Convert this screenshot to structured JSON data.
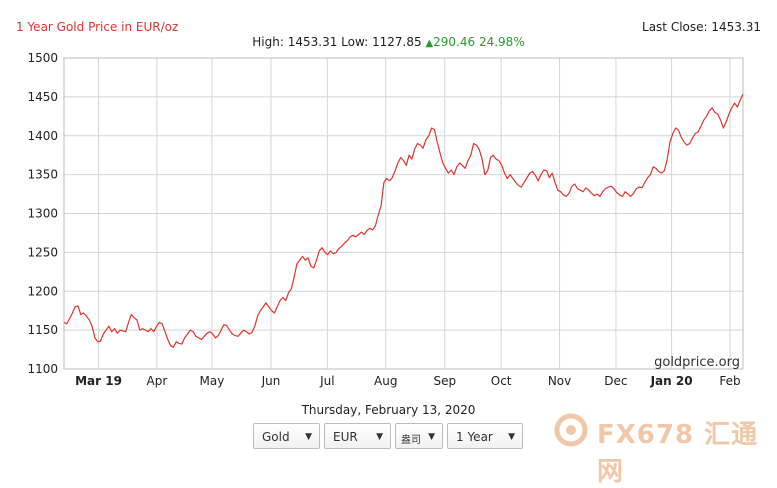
{
  "header": {
    "title": "1 Year Gold Price in EUR/oz",
    "last_close_label": "Last Close: 1453.31"
  },
  "stats": {
    "high_low": "High: 1453.31 Low: 1127.85",
    "change": "290.46 24.98%"
  },
  "footer": {
    "date": "Thursday, February 13, 2020",
    "credit": "goldprice.org"
  },
  "controls": {
    "metal": "Gold",
    "currency": "EUR",
    "unit": "盎司",
    "period": "1 Year"
  },
  "watermark": {
    "text": "FX678 汇通网"
  },
  "colors": {
    "line": "#e0342f",
    "title": "#e0342f",
    "up": "#2a9a2a",
    "grid": "#d4d4d4"
  },
  "chart_data": {
    "type": "line",
    "title": "1 Year Gold Price in EUR/oz",
    "xlabel": "",
    "ylabel": "",
    "ylim": [
      1100,
      1500
    ],
    "yticks": [
      1100,
      1150,
      1200,
      1250,
      1300,
      1350,
      1400,
      1450,
      1500
    ],
    "x_ticks": [
      {
        "label": "Mar 19",
        "bold": true,
        "pos": 0.095
      },
      {
        "label": "Apr",
        "bold": false,
        "pos": 0.181
      },
      {
        "label": "May",
        "bold": false,
        "pos": 0.262
      },
      {
        "label": "Jun",
        "bold": false,
        "pos": 0.349
      },
      {
        "label": "Jul",
        "bold": false,
        "pos": 0.432
      },
      {
        "label": "Aug",
        "bold": false,
        "pos": 0.518
      },
      {
        "label": "Sep",
        "bold": false,
        "pos": 0.605
      },
      {
        "label": "Oct",
        "bold": false,
        "pos": 0.688
      },
      {
        "label": "Nov",
        "bold": false,
        "pos": 0.774
      },
      {
        "label": "Dec",
        "bold": false,
        "pos": 0.857
      },
      {
        "label": "Jan 20",
        "bold": true,
        "pos": 0.939
      },
      {
        "label": "Feb",
        "bold": false,
        "pos": 1.025
      }
    ],
    "grid": true,
    "series": [
      {
        "values": [
          1160,
          1158,
          1165,
          1172,
          1180,
          1181,
          1170,
          1172,
          1168,
          1163,
          1155,
          1140,
          1135,
          1136,
          1145,
          1150,
          1155,
          1148,
          1152,
          1146,
          1150,
          1149,
          1148,
          1160,
          1170,
          1166,
          1163,
          1150,
          1152,
          1150,
          1148,
          1152,
          1148,
          1155,
          1160,
          1158,
          1148,
          1138,
          1130,
          1128,
          1135,
          1133,
          1132,
          1140,
          1145,
          1150,
          1148,
          1142,
          1140,
          1138,
          1142,
          1146,
          1148,
          1145,
          1140,
          1143,
          1150,
          1157,
          1156,
          1150,
          1145,
          1143,
          1142,
          1146,
          1150,
          1148,
          1145,
          1147,
          1155,
          1168,
          1175,
          1180,
          1185,
          1180,
          1175,
          1172,
          1180,
          1188,
          1192,
          1188,
          1198,
          1203,
          1218,
          1235,
          1240,
          1245,
          1240,
          1243,
          1232,
          1230,
          1240,
          1252,
          1256,
          1250,
          1247,
          1252,
          1248,
          1250,
          1255,
          1258,
          1262,
          1265,
          1270,
          1272,
          1270,
          1273,
          1276,
          1273,
          1278,
          1281,
          1279,
          1284,
          1298,
          1310,
          1340,
          1345,
          1342,
          1346,
          1355,
          1365,
          1372,
          1368,
          1362,
          1375,
          1370,
          1383,
          1390,
          1388,
          1384,
          1395,
          1400,
          1410,
          1408,
          1392,
          1378,
          1365,
          1358,
          1352,
          1356,
          1350,
          1360,
          1365,
          1362,
          1358,
          1368,
          1375,
          1390,
          1388,
          1382,
          1370,
          1350,
          1355,
          1372,
          1375,
          1370,
          1368,
          1362,
          1352,
          1345,
          1350,
          1345,
          1340,
          1336,
          1334,
          1340,
          1346,
          1352,
          1354,
          1349,
          1342,
          1350,
          1356,
          1355,
          1346,
          1352,
          1340,
          1330,
          1328,
          1324,
          1322,
          1326,
          1335,
          1338,
          1332,
          1330,
          1328,
          1333,
          1330,
          1326,
          1323,
          1325,
          1322,
          1328,
          1332,
          1334,
          1335,
          1332,
          1327,
          1324,
          1322,
          1328,
          1325,
          1322,
          1326,
          1332,
          1334,
          1333,
          1340,
          1346,
          1350,
          1360,
          1358,
          1354,
          1352,
          1355,
          1370,
          1392,
          1403,
          1410,
          1407,
          1398,
          1392,
          1388,
          1390,
          1397,
          1403,
          1405,
          1412,
          1420,
          1425,
          1432,
          1436,
          1430,
          1428,
          1420,
          1410,
          1418,
          1428,
          1436,
          1442,
          1437,
          1446,
          1453.31
        ]
      }
    ]
  }
}
